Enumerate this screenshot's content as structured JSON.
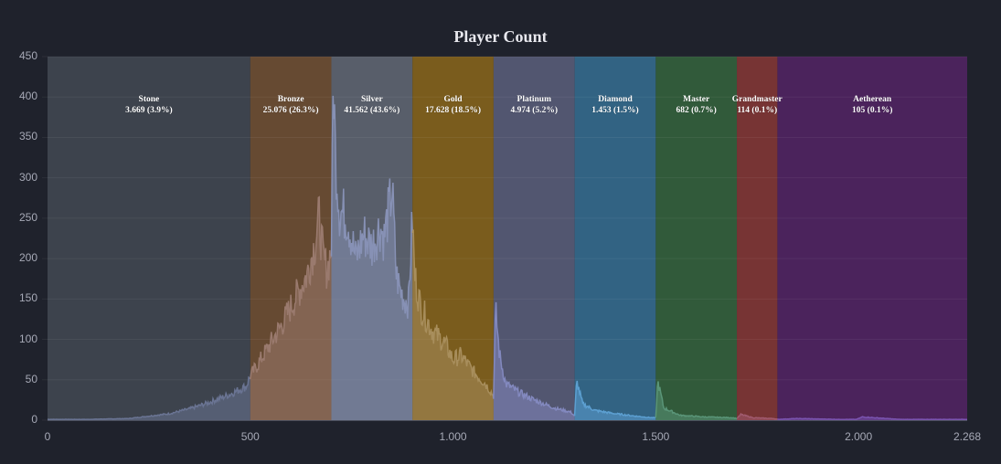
{
  "chart_data": {
    "type": "area",
    "title": "Player Count",
    "xlabel": "",
    "ylabel": "",
    "xlim": [
      0,
      2268
    ],
    "ylim": [
      0,
      450
    ],
    "grid": true,
    "x_ticks": [
      "0",
      "500",
      "1.000",
      "1.500",
      "2.000",
      "2.268"
    ],
    "x_tick_values": [
      0,
      500,
      1000,
      1500,
      2000,
      2268
    ],
    "y_ticks": [
      "0",
      "50",
      "100",
      "150",
      "200",
      "250",
      "300",
      "350",
      "400",
      "450"
    ],
    "y_tick_values": [
      0,
      50,
      100,
      150,
      200,
      250,
      300,
      350,
      400,
      450
    ],
    "bands": [
      {
        "name": "Stone",
        "from": 0,
        "to": 500,
        "count": "3.669",
        "pct": "3.9%",
        "label": "3.669 (3.9%)",
        "color": "#3d434d",
        "line_color": "#6a7493"
      },
      {
        "name": "Bronze",
        "from": 500,
        "to": 700,
        "count": "25.076",
        "pct": "26.3%",
        "label": "25.076 (26.3%)",
        "color": "#664a32",
        "line_color": "#9a7a6e"
      },
      {
        "name": "Silver",
        "from": 700,
        "to": 900,
        "count": "41.562",
        "pct": "43.6%",
        "label": "41.562 (43.6%)",
        "color": "#585e6a",
        "line_color": "#8791b5"
      },
      {
        "name": "Gold",
        "from": 900,
        "to": 1100,
        "count": "17.628",
        "pct": "18.5%",
        "label": "17.628 (18.5%)",
        "color": "#7a5c1d",
        "line_color": "#a88e5c"
      },
      {
        "name": "Platinum",
        "from": 1100,
        "to": 1300,
        "count": "4.974",
        "pct": "5.2%",
        "label": "4.974 (5.2%)",
        "color": "#525670",
        "line_color": "#8389bf"
      },
      {
        "name": "Diamond",
        "from": 1300,
        "to": 1500,
        "count": "1.453",
        "pct": "1.5%",
        "label": "1.453 (1.5%)",
        "color": "#326383",
        "line_color": "#5c9fd1"
      },
      {
        "name": "Master",
        "from": 1500,
        "to": 1700,
        "count": "682",
        "pct": "0.7%",
        "label": "682 (0.7%)",
        "color": "#315a3a",
        "line_color": "#5a9578"
      },
      {
        "name": "Grandmaster",
        "from": 1700,
        "to": 1800,
        "count": "114",
        "pct": "0.1%",
        "label": "114 (0.1%)",
        "color": "#773434",
        "line_color": "#a05a6e"
      },
      {
        "name": "Aetherean",
        "from": 1800,
        "to": 2268,
        "count": "105",
        "pct": "0.1%",
        "label": "105 (0.1%)",
        "color": "#4b235c",
        "line_color": "#7a54b0"
      }
    ],
    "series": [
      {
        "name": "Player Count",
        "x": [
          0,
          100,
          200,
          300,
          350,
          400,
          450,
          490,
          500,
          520,
          550,
          580,
          610,
          640,
          660,
          670,
          680,
          690,
          700,
          705,
          710,
          720,
          740,
          760,
          780,
          800,
          820,
          830,
          850,
          860,
          870,
          880,
          890,
          900,
          905,
          920,
          950,
          980,
          1000,
          1020,
          1050,
          1080,
          1100,
          1105,
          1115,
          1130,
          1160,
          1200,
          1250,
          1290,
          1300,
          1305,
          1320,
          1350,
          1400,
          1450,
          1490,
          1500,
          1505,
          1520,
          1560,
          1620,
          1690,
          1700,
          1710,
          1740,
          1790,
          1800,
          1850,
          1950,
          1995,
          2010,
          2100,
          2268
        ],
        "y": [
          1,
          1,
          2,
          8,
          14,
          22,
          32,
          42,
          55,
          70,
          95,
          120,
          150,
          180,
          220,
          250,
          200,
          185,
          215,
          435,
          330,
          260,
          250,
          200,
          230,
          215,
          240,
          225,
          285,
          180,
          160,
          150,
          145,
          250,
          180,
          140,
          110,
          95,
          75,
          80,
          60,
          45,
          30,
          135,
          80,
          45,
          35,
          25,
          15,
          10,
          5,
          48,
          20,
          12,
          8,
          5,
          3,
          3,
          48,
          15,
          6,
          4,
          3,
          2,
          7,
          3,
          2,
          1,
          2,
          1,
          1,
          4,
          1,
          1
        ]
      }
    ],
    "legend": "none"
  }
}
